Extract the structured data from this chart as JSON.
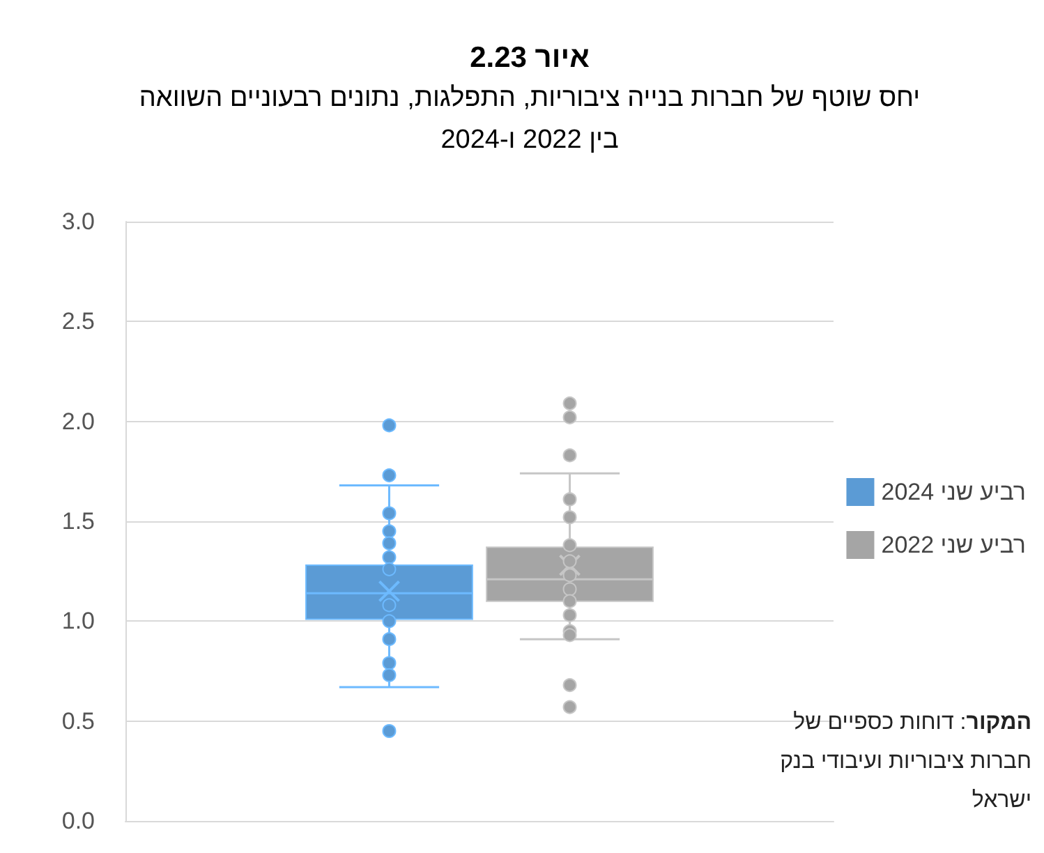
{
  "chart_data": {
    "type": "box",
    "title": "איור 2.23",
    "subtitle": "יחס שוטף של חברות בנייה ציבוריות, התפלגות, נתונים רבעוניים השוואה בין 2022 ו-2024",
    "categories": [
      null
    ],
    "series": [
      {
        "name": "רביע שני 2024",
        "color": "#5b9bd5",
        "boxes": [
          {
            "low": 0.67,
            "q1": 1.01,
            "median": 1.14,
            "q3": 1.28,
            "high": 1.68,
            "mean": 1.15,
            "outliers": [
              1.98,
              1.73,
              1.54,
              1.45,
              1.39,
              1.32,
              1.26,
              1.08,
              1.0,
              0.91,
              0.79,
              0.73,
              0.45
            ]
          }
        ]
      },
      {
        "name": "רביע שני 2022",
        "color": "#a5a5a5",
        "boxes": [
          {
            "low": 0.91,
            "q1": 1.1,
            "median": 1.21,
            "q3": 1.37,
            "high": 1.74,
            "mean": 1.28,
            "outliers": [
              2.09,
              2.02,
              1.83,
              1.61,
              1.52,
              1.38,
              1.3,
              1.23,
              1.16,
              1.1,
              1.03,
              0.95,
              0.93,
              0.68,
              0.57
            ]
          }
        ]
      }
    ],
    "ylim": [
      0,
      3
    ],
    "yticks": [
      {
        "value": 0,
        "label": "0.0"
      },
      {
        "value": 0.5,
        "label": "0.5"
      },
      {
        "value": 1,
        "label": "1.0"
      },
      {
        "value": 1.5,
        "label": "1.5"
      },
      {
        "value": 2,
        "label": "2.0"
      },
      {
        "value": 2.5,
        "label": "2.5"
      },
      {
        "value": 3,
        "label": "3.0"
      }
    ],
    "grid": "y",
    "legend": "right",
    "marker": "circle",
    "annotations": [
      "המקור: דוחות כספיים של חברות ציבוריות ועיבודי בנק ישראל"
    ]
  }
}
